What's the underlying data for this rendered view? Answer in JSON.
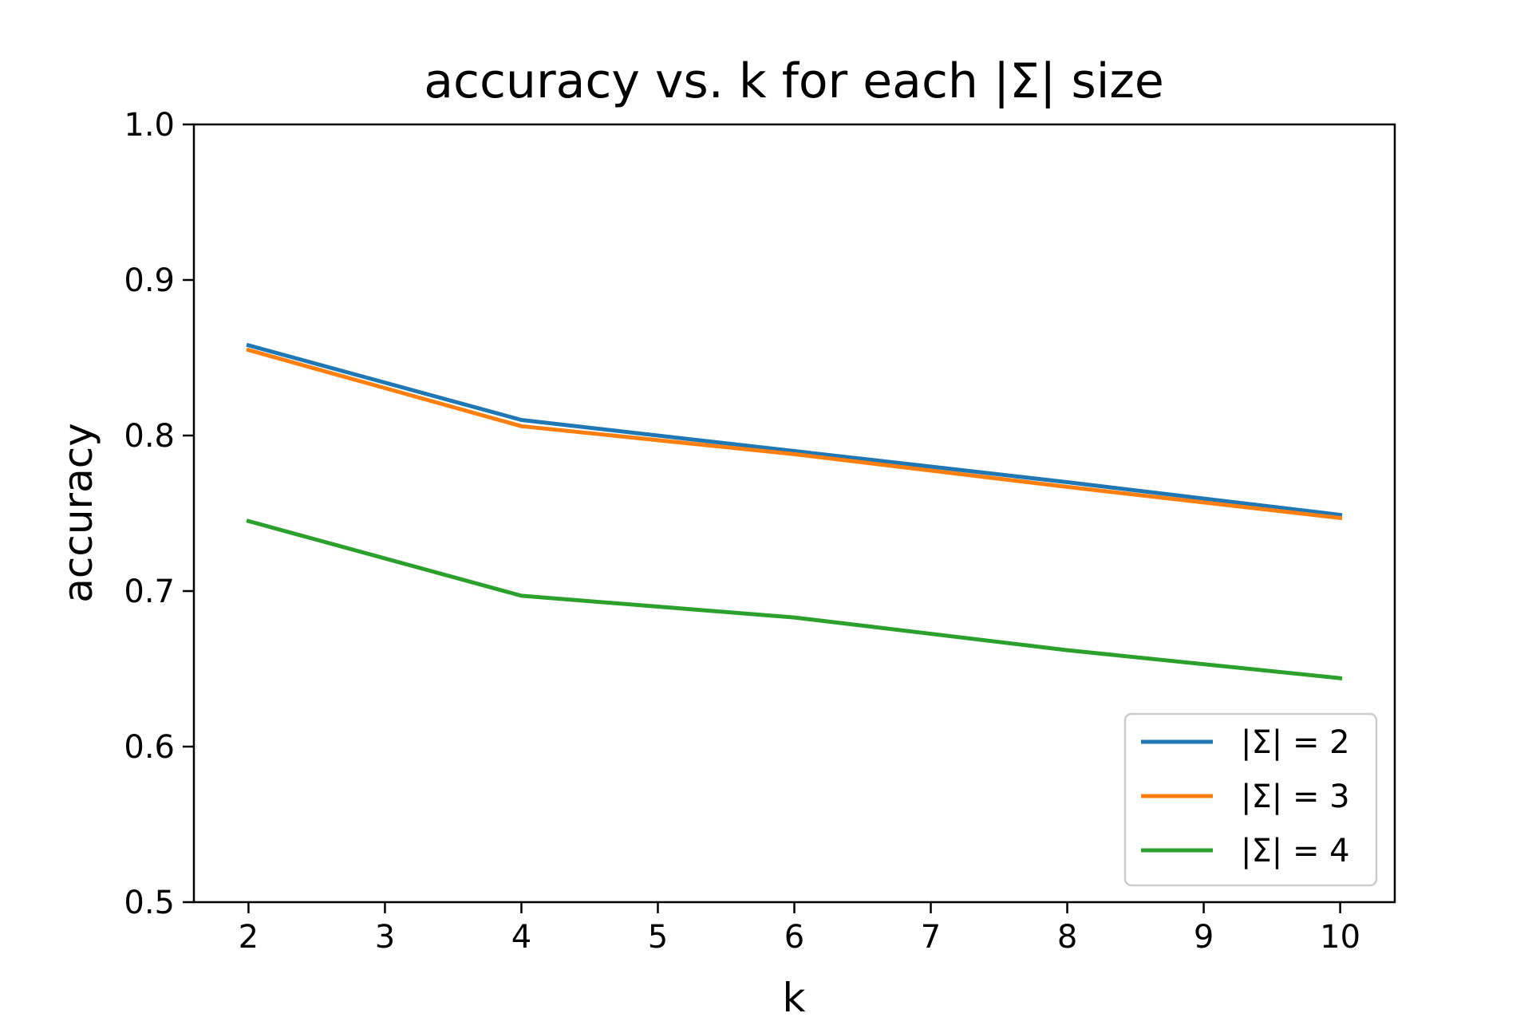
{
  "chart_data": {
    "type": "line",
    "title": "accuracy vs. k for each |Σ| size",
    "xlabel": "k",
    "ylabel": "accuracy",
    "xlim": [
      1.6,
      10.4
    ],
    "ylim": [
      0.5,
      1.0
    ],
    "x_ticks": [
      2,
      3,
      4,
      5,
      6,
      7,
      8,
      9,
      10
    ],
    "x_tick_labels": [
      "2",
      "3",
      "4",
      "5",
      "6",
      "7",
      "8",
      "9",
      "10"
    ],
    "y_ticks": [
      0.5,
      0.6,
      0.7,
      0.8,
      0.9,
      1.0
    ],
    "y_tick_labels": [
      "0.5",
      "0.6",
      "0.7",
      "0.8",
      "0.9",
      "1.0"
    ],
    "grid": false,
    "legend_position": "lower-right",
    "x": [
      2,
      4,
      6,
      8,
      10
    ],
    "series": [
      {
        "name": "|Σ| = 2",
        "color": "#1f77b4",
        "values": [
          0.858,
          0.81,
          0.79,
          0.77,
          0.749
        ]
      },
      {
        "name": "|Σ| = 3",
        "color": "#ff7f0e",
        "values": [
          0.855,
          0.806,
          0.788,
          0.767,
          0.747
        ]
      },
      {
        "name": "|Σ| = 4",
        "color": "#2ca02c",
        "values": [
          0.745,
          0.697,
          0.683,
          0.662,
          0.644
        ]
      }
    ]
  }
}
